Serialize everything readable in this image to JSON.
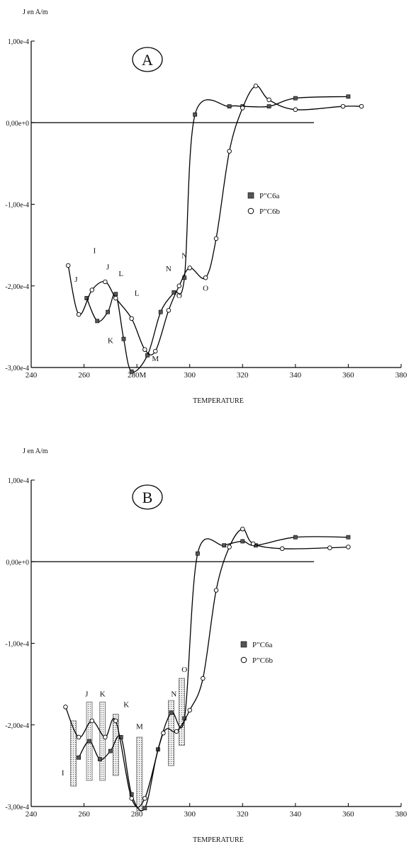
{
  "chart_data": [
    {
      "panel": "A",
      "type": "line",
      "ylabel": "J en A/m",
      "xlabel": "TEMPERATURE",
      "xlim": [
        240,
        380
      ],
      "ylim": [
        -0.0003,
        0.0001
      ],
      "xticks": [
        "240",
        "260",
        "280M",
        "300",
        "320",
        "340",
        "360",
        "380"
      ],
      "yticks": [
        "1,00e-4",
        "0,00e+0",
        "-1,00e-4",
        "-2,00e-4",
        "-3,00e-4"
      ],
      "legend": [
        {
          "marker": "square",
          "label": "P\"C6a"
        },
        {
          "marker": "circle",
          "label": "P\"C6b"
        }
      ],
      "series": [
        {
          "marker": "square",
          "x": [
            261,
            265,
            269,
            272,
            275,
            278,
            284,
            289,
            294,
            298,
            302,
            315,
            320,
            330,
            340,
            360
          ],
          "y": [
            -0.000215,
            -0.000243,
            -0.000232,
            -0.00021,
            -0.000265,
            -0.000305,
            -0.000285,
            -0.000232,
            -0.000208,
            -0.00019,
            1e-05,
            2e-05,
            2e-05,
            2e-05,
            3e-05,
            3.2e-05
          ]
        },
        {
          "marker": "circle",
          "x": [
            254,
            258,
            263,
            268,
            272,
            278,
            283,
            287,
            292,
            296,
            300,
            306,
            310,
            315,
            320,
            325,
            330,
            340,
            358,
            365
          ],
          "y": [
            -0.000175,
            -0.000235,
            -0.000205,
            -0.000195,
            -0.000215,
            -0.00024,
            -0.000278,
            -0.00028,
            -0.00023,
            -0.0002,
            -0.000178,
            -0.00019,
            -0.000142,
            -3.5e-05,
            1.8e-05,
            4.5e-05,
            2.8e-05,
            1.6e-05,
            2e-05,
            2e-05
          ]
        }
      ],
      "annotations": [
        {
          "text": "I",
          "x": 264,
          "y": -0.00016
        },
        {
          "text": "J",
          "x": 257,
          "y": -0.000195
        },
        {
          "text": "J",
          "x": 269,
          "y": -0.00018
        },
        {
          "text": "L",
          "x": 274,
          "y": -0.000188
        },
        {
          "text": "L",
          "x": 280,
          "y": -0.000212
        },
        {
          "text": "K",
          "x": 270,
          "y": -0.00027
        },
        {
          "text": "M",
          "x": 287,
          "y": -0.000292
        },
        {
          "text": "N",
          "x": 292,
          "y": -0.000182
        },
        {
          "text": "N",
          "x": 298,
          "y": -0.000166
        },
        {
          "text": "O",
          "x": 296,
          "y": -0.000215
        },
        {
          "text": "O",
          "x": 306,
          "y": -0.000206
        }
      ]
    },
    {
      "panel": "B",
      "type": "line",
      "ylabel": "J en A/m",
      "xlabel": "TEMPERATURE",
      "xlim": [
        240,
        380
      ],
      "ylim": [
        -0.0003,
        0.0001
      ],
      "xticks": [
        "240",
        "260",
        "280",
        "300",
        "320",
        "340",
        "360",
        "380"
      ],
      "yticks": [
        "1,00e-4",
        "0,00e+0",
        "-1,00e-4",
        "-2,00e-4",
        "-3,00e-4"
      ],
      "legend": [
        {
          "marker": "square",
          "label": "P\"C6a"
        },
        {
          "marker": "circle",
          "label": "P\"C6b"
        }
      ],
      "series": [
        {
          "marker": "square",
          "x": [
            258,
            262,
            266,
            270,
            274,
            278,
            283,
            288,
            293,
            298,
            303,
            313,
            320,
            325,
            340,
            360
          ],
          "y": [
            -0.00024,
            -0.00022,
            -0.000242,
            -0.000232,
            -0.000215,
            -0.000285,
            -0.000302,
            -0.00023,
            -0.000185,
            -0.000192,
            1e-05,
            2e-05,
            2.5e-05,
            2e-05,
            3e-05,
            3e-05
          ]
        },
        {
          "marker": "circle",
          "x": [
            253,
            258,
            263,
            268,
            272,
            278,
            283,
            290,
            295,
            300,
            305,
            310,
            315,
            320,
            324,
            335,
            353,
            360
          ],
          "y": [
            -0.000178,
            -0.000215,
            -0.000195,
            -0.000215,
            -0.000195,
            -0.00029,
            -0.00029,
            -0.00021,
            -0.000208,
            -0.000182,
            -0.000143,
            -3.5e-05,
            1.8e-05,
            4e-05,
            2.2e-05,
            1.6e-05,
            1.7e-05,
            1.8e-05
          ]
        }
      ],
      "ranges": [
        {
          "x": 256,
          "ymin": -0.000275,
          "ymax": -0.000195
        },
        {
          "x": 262,
          "ymin": -0.000268,
          "ymax": -0.000172
        },
        {
          "x": 267,
          "ymin": -0.000268,
          "ymax": -0.000172
        },
        {
          "x": 272,
          "ymin": -0.000262,
          "ymax": -0.000187
        },
        {
          "x": 281,
          "ymin": -0.000305,
          "ymax": -0.000215
        },
        {
          "x": 293,
          "ymin": -0.00025,
          "ymax": -0.00017
        },
        {
          "x": 297,
          "ymin": -0.000225,
          "ymax": -0.000143
        }
      ],
      "annotations": [
        {
          "text": "I",
          "x": 252,
          "y": -0.000262
        },
        {
          "text": "J",
          "x": 261,
          "y": -0.000165
        },
        {
          "text": "K",
          "x": 267,
          "y": -0.000165
        },
        {
          "text": "K",
          "x": 276,
          "y": -0.000178
        },
        {
          "text": "M",
          "x": 281,
          "y": -0.000205
        },
        {
          "text": "N",
          "x": 294,
          "y": -0.000165
        },
        {
          "text": "O",
          "x": 298,
          "y": -0.000135
        }
      ]
    }
  ]
}
